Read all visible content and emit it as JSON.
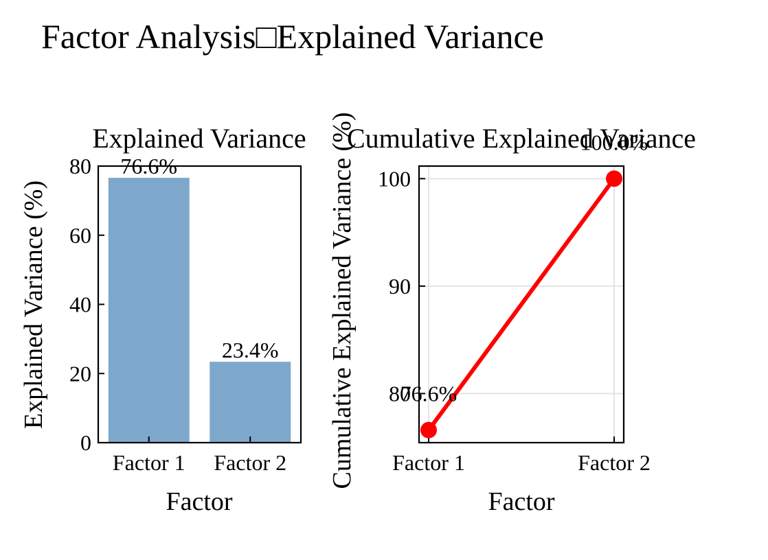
{
  "title": "Factor Analysis□Explained Variance",
  "chart_data": [
    {
      "type": "bar",
      "title": "Explained Variance",
      "xlabel": "Factor",
      "ylabel": "Explained Variance (%)",
      "categories": [
        "Factor 1",
        "Factor 2"
      ],
      "values": [
        76.6,
        23.4
      ],
      "data_labels": [
        "76.6%",
        "23.4%"
      ],
      "ylim": [
        0,
        80
      ],
      "yticks": [
        0,
        20,
        40,
        60,
        80
      ],
      "bar_color": "#7ea8cb",
      "grid": false
    },
    {
      "type": "line",
      "title": "Cumulative Explained Variance",
      "xlabel": "Factor",
      "ylabel": "Cumulative Explained Variance (%)",
      "categories": [
        "Factor 1",
        "Factor 2"
      ],
      "values": [
        76.6,
        100.0
      ],
      "data_labels": [
        "76.6%",
        "100.0%"
      ],
      "ylim": [
        75.43,
        101.17
      ],
      "yticks": [
        80,
        90,
        100
      ],
      "line_color": "#ff0000",
      "grid": true
    }
  ]
}
